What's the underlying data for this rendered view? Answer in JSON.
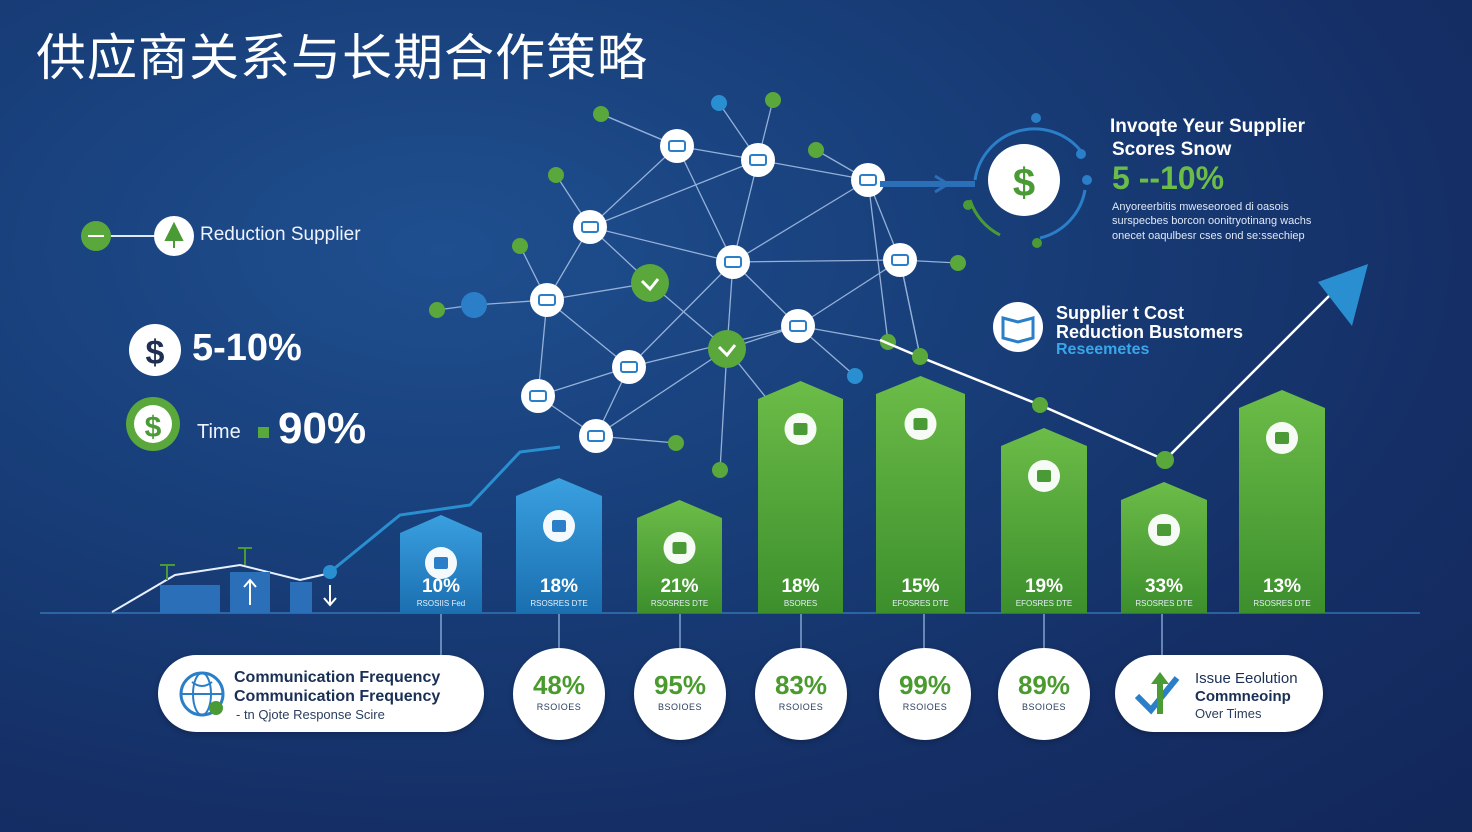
{
  "title": "供应商关系与长期合作策略",
  "left_panel": {
    "reduction_label": "Reduction Supplier",
    "stat1_value": "5-10%",
    "stat2_label": "Time",
    "stat2_value": "90%"
  },
  "top_right": {
    "heading_line1": "Invoqte Yeur Supplier",
    "heading_line2": "Scores Snow",
    "value": "5 --10%",
    "desc_line1": "Anyoreerbitis mweseoroed di oasois",
    "desc_line2": "surspecbes borcon oonitryotinang wachs",
    "desc_line3": "onecet oaqulbesr cses ond se:ssechiep"
  },
  "mid_right": {
    "line1": "Supplier t Cost",
    "line2": "Reduction Bustomers",
    "line3": "Reseemetes"
  },
  "bars": [
    {
      "value": 10,
      "label": "10%",
      "sub": "RSOSIIS Fed",
      "color": "#2a8fd0"
    },
    {
      "value": 18,
      "label": "18%",
      "sub": "RSOSRES DTE",
      "color": "#2a8fd0"
    },
    {
      "value": 21,
      "label": "21%",
      "sub": "RSOSRES DTE",
      "color": "#4a9a35"
    },
    {
      "value": 18,
      "label": "18%",
      "sub": "BSORES",
      "color": "#4fa33a"
    },
    {
      "value": 15,
      "label": "15%",
      "sub": "EFOSRES DTE",
      "color": "#55aa3d"
    },
    {
      "value": 19,
      "label": "19%",
      "sub": "EFOSRES DTE",
      "color": "#3aa04a"
    },
    {
      "value": 33,
      "label": "33%",
      "sub": "RSOSRES DTE",
      "color": "#36a050"
    },
    {
      "value": 13,
      "label": "13%",
      "sub": "RSOSRES DTE",
      "color": "#32a054"
    }
  ],
  "bottom_left": {
    "line1": "Communication Frequency",
    "line2": "Communication Frequency",
    "line3": "-  tn  Qjote Response Scire"
  },
  "bottom_circles": [
    {
      "value": "48%",
      "sub": "RSOIOES"
    },
    {
      "value": "95%",
      "sub": "BSOIOES"
    },
    {
      "value": "83%",
      "sub": "RSOIOES"
    },
    {
      "value": "99%",
      "sub": "RSOIOES"
    },
    {
      "value": "89%",
      "sub": "BSOIOES"
    }
  ],
  "bottom_right": {
    "line1": "Issue Eeolution",
    "line2": "Commneoinp",
    "line3": "Over Times"
  },
  "colors": {
    "background": "#183f7a",
    "green": "#5aa83c",
    "blue": "#2a8fd0",
    "network_line": "#aac4e8"
  },
  "icons": [
    "dollar-icon",
    "tree-icon",
    "globe-icon",
    "network-node-icon",
    "book-icon",
    "arrow-up-icon",
    "arrow-down-icon",
    "checkmark-icon"
  ]
}
